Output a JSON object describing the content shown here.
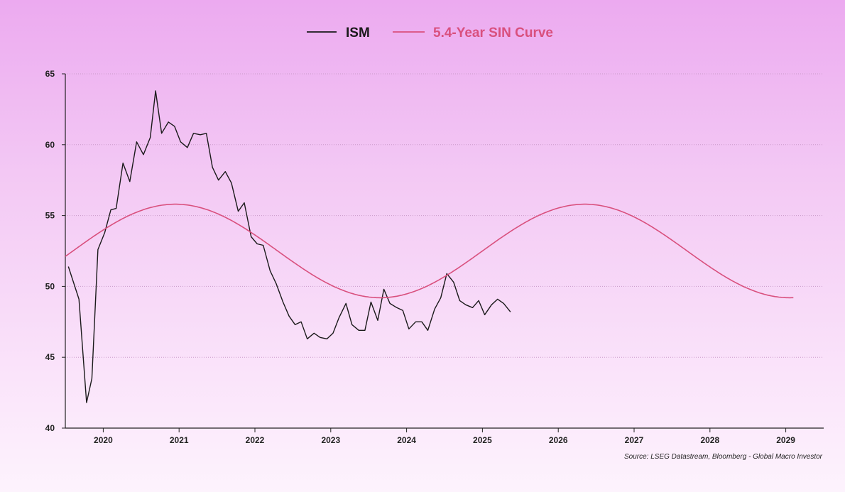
{
  "chart_data": {
    "type": "line",
    "xlim": [
      2019.5,
      2029.5
    ],
    "ylim": [
      40,
      65
    ],
    "y_ticks": [
      40,
      45,
      50,
      55,
      60,
      65
    ],
    "x_tick_labels": [
      "2020",
      "2021",
      "2022",
      "2023",
      "2024",
      "2025",
      "2026",
      "2027",
      "2028",
      "2029"
    ],
    "grid": "horizontal dotted",
    "legend_position": "top-center",
    "series": [
      {
        "name": "ISM",
        "color": "#1a1a1a",
        "points": [
          [
            2019.54,
            51.4
          ],
          [
            2019.68,
            49.1
          ],
          [
            2019.78,
            41.8
          ],
          [
            2019.85,
            43.5
          ],
          [
            2019.93,
            52.6
          ],
          [
            2020.02,
            53.8
          ],
          [
            2020.1,
            55.4
          ],
          [
            2020.17,
            55.5
          ],
          [
            2020.26,
            58.7
          ],
          [
            2020.35,
            57.4
          ],
          [
            2020.44,
            60.2
          ],
          [
            2020.53,
            59.3
          ],
          [
            2020.62,
            60.5
          ],
          [
            2020.69,
            63.8
          ],
          [
            2020.77,
            60.8
          ],
          [
            2020.86,
            61.6
          ],
          [
            2020.94,
            61.3
          ],
          [
            2021.02,
            60.2
          ],
          [
            2021.11,
            59.8
          ],
          [
            2021.19,
            60.8
          ],
          [
            2021.28,
            60.7
          ],
          [
            2021.36,
            60.8
          ],
          [
            2021.44,
            58.4
          ],
          [
            2021.52,
            57.5
          ],
          [
            2021.61,
            58.1
          ],
          [
            2021.69,
            57.3
          ],
          [
            2021.78,
            55.3
          ],
          [
            2021.86,
            55.9
          ],
          [
            2021.95,
            53.5
          ],
          [
            2022.03,
            53.0
          ],
          [
            2022.11,
            52.9
          ],
          [
            2022.2,
            51.1
          ],
          [
            2022.28,
            50.2
          ],
          [
            2022.37,
            48.9
          ],
          [
            2022.45,
            47.9
          ],
          [
            2022.53,
            47.3
          ],
          [
            2022.61,
            47.5
          ],
          [
            2022.69,
            46.3
          ],
          [
            2022.78,
            46.7
          ],
          [
            2022.86,
            46.4
          ],
          [
            2022.95,
            46.3
          ],
          [
            2023.03,
            46.7
          ],
          [
            2023.11,
            47.8
          ],
          [
            2023.2,
            48.8
          ],
          [
            2023.28,
            47.3
          ],
          [
            2023.37,
            46.9
          ],
          [
            2023.45,
            46.9
          ],
          [
            2023.53,
            48.9
          ],
          [
            2023.62,
            47.6
          ],
          [
            2023.7,
            49.8
          ],
          [
            2023.78,
            48.8
          ],
          [
            2023.87,
            48.5
          ],
          [
            2023.95,
            48.3
          ],
          [
            2024.03,
            47.0
          ],
          [
            2024.12,
            47.5
          ],
          [
            2024.2,
            47.5
          ],
          [
            2024.28,
            46.9
          ],
          [
            2024.37,
            48.4
          ],
          [
            2024.45,
            49.2
          ],
          [
            2024.53,
            50.9
          ],
          [
            2024.62,
            50.3
          ],
          [
            2024.7,
            49.0
          ],
          [
            2024.78,
            48.7
          ],
          [
            2024.87,
            48.5
          ],
          [
            2024.95,
            49.0
          ],
          [
            2025.03,
            48.0
          ],
          [
            2025.12,
            48.7
          ],
          [
            2025.2,
            49.1
          ],
          [
            2025.28,
            48.8
          ],
          [
            2025.37,
            48.2
          ]
        ]
      },
      {
        "name": "5.4-Year SIN Curve",
        "color": "#d9507e",
        "sine": {
          "amplitude": 3.3,
          "midline": 52.5,
          "period_years": 5.4,
          "peak_at": 2020.95,
          "x_start": 2019.5,
          "x_end": 2029.1
        }
      }
    ]
  },
  "source_note": "Source: LSEG Datastream, Bloomberg - Global Macro Investor"
}
